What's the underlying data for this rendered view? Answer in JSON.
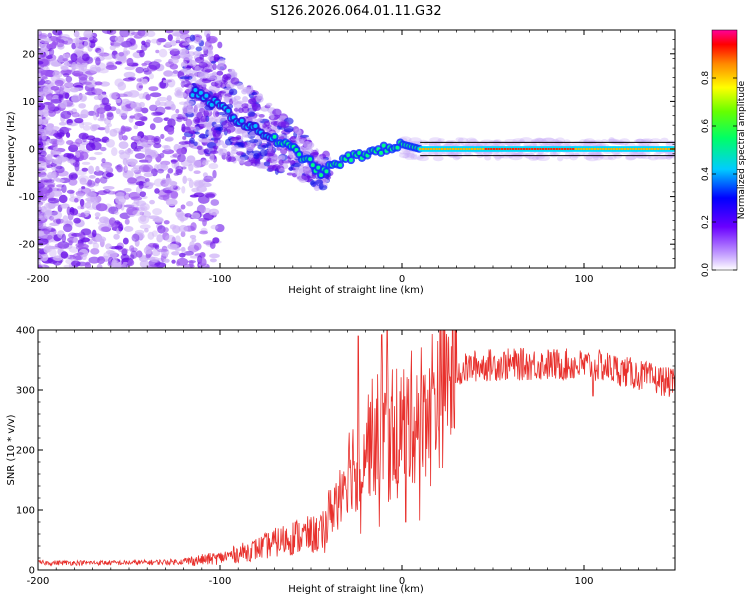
{
  "title": "S126.2026.064.01.11.G32",
  "chart_data": [
    {
      "type": "heatmap",
      "name": "spectrogram",
      "xlabel": "Height of straight line (km)",
      "ylabel": "Frequency (Hz)",
      "xlim": [
        -200,
        150
      ],
      "ylim": [
        -25,
        25
      ],
      "xticks": [
        -200,
        -100,
        0,
        100
      ],
      "xtick_labels": [
        "-200",
        "-100",
        "0",
        "100"
      ],
      "yticks": [
        -20,
        -10,
        0,
        10,
        20
      ],
      "ytick_labels": [
        "-20",
        "-10",
        "0",
        "10",
        "20"
      ],
      "ridge": {
        "x": [
          -115,
          -100,
          -90,
          -80,
          -70,
          -60,
          -50,
          -45,
          -40,
          -30,
          -20,
          -10,
          0,
          10,
          50,
          100,
          150
        ],
        "y": [
          12,
          9,
          6,
          4,
          2,
          0,
          -3,
          -5,
          -4,
          -2,
          -1,
          0,
          1,
          0,
          0,
          0,
          0
        ]
      },
      "colorbar": {
        "label": "Normalized spectral amplitude",
        "range": [
          0,
          1
        ],
        "ticks": [
          0.0,
          0.2,
          0.4,
          0.6,
          0.8
        ],
        "tick_labels": [
          "0.0",
          "0.2",
          "0.4",
          "0.6",
          "0.8"
        ]
      }
    },
    {
      "type": "line",
      "name": "snr",
      "xlabel": "Height of straight line (km)",
      "ylabel": "SNR (10 * v/v)",
      "xlim": [
        -200,
        150
      ],
      "ylim": [
        0,
        400
      ],
      "xticks": [
        -200,
        -100,
        0,
        100
      ],
      "xtick_labels": [
        "-200",
        "-100",
        "0",
        "100"
      ],
      "yticks": [
        0,
        100,
        200,
        300,
        400
      ],
      "ytick_labels": [
        "0",
        "100",
        "200",
        "300",
        "400"
      ],
      "line_color": "#e8302c",
      "envelope": {
        "x": [
          -200,
          -150,
          -120,
          -100,
          -80,
          -60,
          -45,
          -40,
          -30,
          -20,
          -10,
          0,
          10,
          20,
          30,
          40,
          50,
          70,
          90,
          110,
          130,
          150
        ],
        "y": [
          12,
          12,
          14,
          20,
          35,
          55,
          60,
          90,
          170,
          210,
          240,
          240,
          265,
          300,
          330,
          340,
          342,
          343,
          342,
          340,
          325,
          310
        ]
      },
      "spikes": [
        {
          "x": -24,
          "y": 390
        },
        {
          "x": -11,
          "y": 392
        },
        {
          "x": -8,
          "y": 400
        },
        {
          "x": 105,
          "y": 375
        }
      ],
      "dips": [
        {
          "x": 2,
          "y": 80
        },
        {
          "x": 105,
          "y": 290
        }
      ]
    }
  ]
}
